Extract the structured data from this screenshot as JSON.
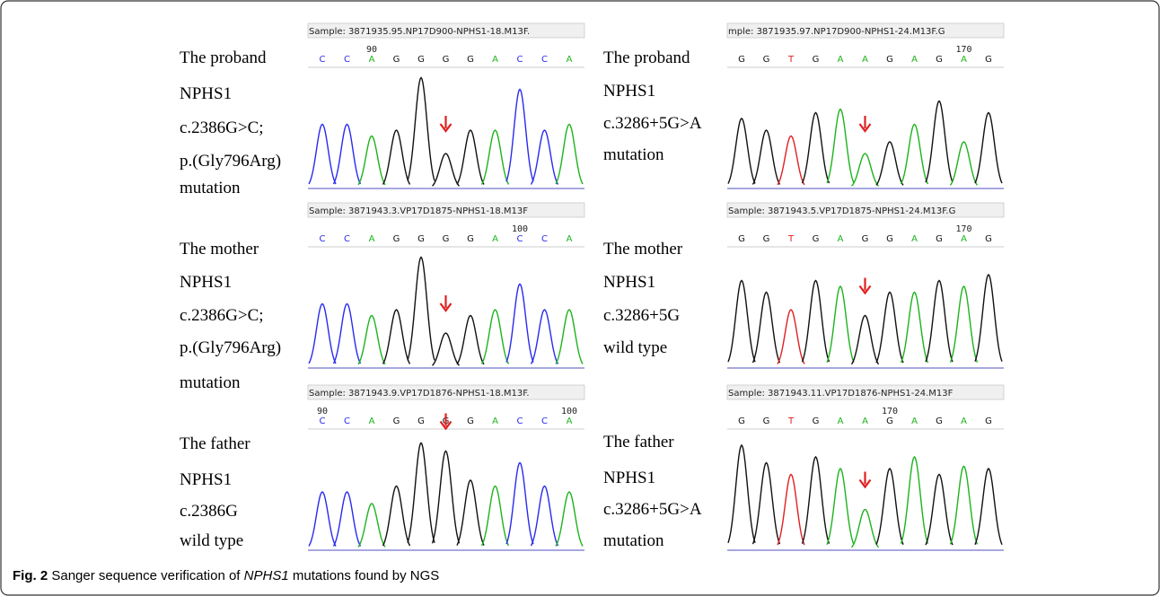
{
  "panels": [
    {
      "labels": [
        "The proband",
        "NPHS1",
        "c.2386G>C;",
        "p.(Gly796Arg)",
        "mutation"
      ],
      "sample": "Sample: 3871935.95.NP17D900-NPHS1-18.M13F.",
      "bases": [
        "C",
        "C",
        "A",
        "G",
        "G",
        "G",
        "G",
        "A",
        "C",
        "C",
        "A"
      ],
      "position_labels": [
        null,
        null,
        "90",
        null,
        null,
        null,
        null,
        null,
        null,
        null,
        null
      ]
    },
    {
      "labels": [
        "The proband",
        "NPHS1",
        "c.3286+5G>A",
        "mutation"
      ],
      "sample": "mple: 3871935.97.NP17D900-NPHS1-24.M13F.G",
      "bases": [
        "G",
        "G",
        "T",
        "G",
        "A",
        "A",
        "G",
        "A",
        "G",
        "A",
        "G"
      ],
      "position_labels": [
        null,
        null,
        null,
        null,
        null,
        null,
        null,
        null,
        null,
        "170",
        null
      ]
    },
    {
      "labels": [
        "The mother",
        "NPHS1",
        "c.2386G>C;",
        "p.(Gly796Arg)",
        "mutation"
      ],
      "sample": "Sample: 3871943.3.VP17D1875-NPHS1-18.M13F",
      "bases": [
        "C",
        "C",
        "A",
        "G",
        "G",
        "G",
        "G",
        "A",
        "C",
        "C",
        "A"
      ],
      "position_labels": [
        null,
        null,
        null,
        null,
        null,
        null,
        null,
        null,
        "100",
        null,
        null
      ]
    },
    {
      "labels": [
        "The mother",
        "NPHS1",
        "c.3286+5G",
        "wild type"
      ],
      "sample": "Sample: 3871943.5.VP17D1875-NPHS1-24.M13F.G",
      "bases": [
        "G",
        "G",
        "T",
        "G",
        "A",
        "G",
        "G",
        "A",
        "G",
        "A",
        "G"
      ],
      "position_labels": [
        null,
        null,
        null,
        null,
        null,
        null,
        null,
        null,
        null,
        "170",
        null
      ]
    },
    {
      "labels": [
        "The father",
        "NPHS1",
        "c.2386G",
        "wild type"
      ],
      "sample": "Sample: 3871943.9.VP17D1876-NPHS1-18.M13F.",
      "bases": [
        "C",
        "C",
        "A",
        "G",
        "G",
        "G",
        "G",
        "A",
        "C",
        "C",
        "A"
      ],
      "position_labels": [
        "90",
        null,
        null,
        null,
        null,
        null,
        null,
        null,
        null,
        null,
        "100"
      ]
    },
    {
      "labels": [
        "The father",
        "NPHS1",
        "c.3286+5G>A",
        "mutation"
      ],
      "sample": "Sample: 3871943.11.VP17D1876-NPHS1-24.M13F",
      "bases": [
        "G",
        "G",
        "T",
        "G",
        "A",
        "A",
        "G",
        "A",
        "G",
        "A",
        "G"
      ],
      "position_labels": [
        null,
        null,
        null,
        null,
        null,
        null,
        "170",
        null,
        null,
        null,
        null
      ]
    }
  ],
  "base_colors": {
    "A": "#1db31d",
    "C": "#2a2aee",
    "G": "#111111",
    "T": "#e02020"
  },
  "caption": {
    "label": "Fig. 2",
    "text": "Sanger sequence verification of ",
    "gene": "NPHS1",
    "rest": " mutations found by NGS"
  }
}
